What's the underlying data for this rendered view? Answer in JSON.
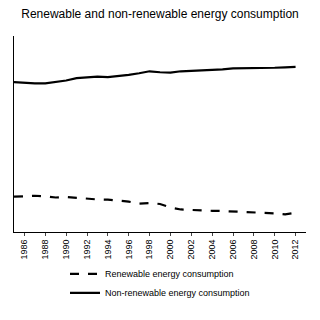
{
  "chart_data": {
    "type": "line",
    "title": "Renewable and non-renewable energy consumption",
    "x": [
      1985,
      1986,
      1987,
      1988,
      1989,
      1990,
      1991,
      1992,
      1993,
      1994,
      1995,
      1996,
      1997,
      1998,
      1999,
      2000,
      2001,
      2002,
      2003,
      2004,
      2005,
      2006,
      2007,
      2008,
      2009,
      2010,
      2011,
      2012
    ],
    "series": [
      {
        "name": "Renewable energy consumption",
        "color": "#000000",
        "line_style": "dashed",
        "values": [
          18,
          18.3,
          18.5,
          18.2,
          17.6,
          17.9,
          17.4,
          16.8,
          16.6,
          16.5,
          16,
          15.5,
          14.5,
          14.8,
          14.3,
          12.5,
          11.5,
          11.2,
          11,
          10.8,
          10.7,
          10.5,
          10.4,
          10,
          10,
          9.5,
          9,
          9.8
        ]
      },
      {
        "name": "Non-renewable energy consumption",
        "color": "#000000",
        "line_style": "solid",
        "values": [
          76.5,
          76,
          75.8,
          75.8,
          76.5,
          77.3,
          78.5,
          79,
          79.3,
          79,
          79.5,
          80.2,
          81,
          82,
          81.5,
          81.3,
          82,
          82.2,
          82.5,
          82.8,
          83,
          83.5,
          83.5,
          83.8,
          83.6,
          83.8,
          84,
          84.2
        ]
      }
    ],
    "xlim": [
      1985,
      2013
    ],
    "xticks": [
      1986,
      1988,
      1990,
      1992,
      1994,
      1996,
      1998,
      2000,
      2002,
      2004,
      2006,
      2008,
      2010,
      2012
    ],
    "ylim": [
      0,
      100
    ],
    "tick_labels": "x",
    "grid": false,
    "legend": "bottom"
  }
}
